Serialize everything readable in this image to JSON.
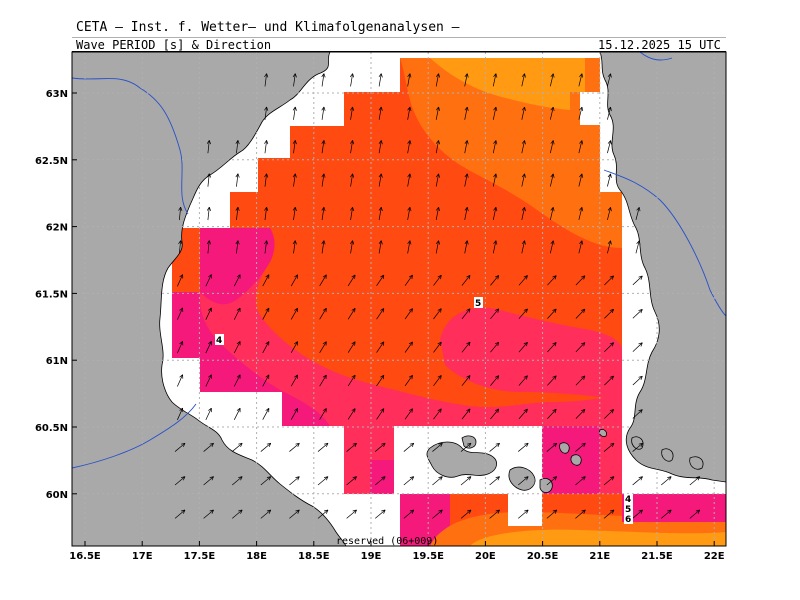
{
  "header": {
    "institute": "CETA — Inst. f. Wetter— und Klimafolgenanalysen —",
    "field": "Wave_PERIOD [s] & Direction",
    "datetime": "15.12.2025 15 UTC"
  },
  "axes": {
    "lon_ticks": [
      "16.5E",
      "17E",
      "17.5E",
      "18E",
      "18.5E",
      "19E",
      "19.5E",
      "20E",
      "20.5E",
      "21E",
      "21.5E",
      "22E"
    ],
    "lat_ticks": [
      "63N",
      "62.5N",
      "62N",
      "61.5N",
      "61N",
      "60.5N",
      "60N"
    ]
  },
  "contour_labels": [
    "4",
    "5",
    "4",
    "5",
    "6"
  ],
  "footer": "reserved (06+009)",
  "colors": {
    "land": "#a9a9a9",
    "sea_nodata": "#ffffff",
    "period_4": "#f4197a",
    "period_4_5": "#ff2e5a",
    "period_5_6": "#ff4a12",
    "period_6_7": "#ff7010",
    "period_7_plus": "#ff9a12",
    "coast": "#000000",
    "border": "#2850c8"
  },
  "arrow_icon": "wave-direction-arrow-icon"
}
